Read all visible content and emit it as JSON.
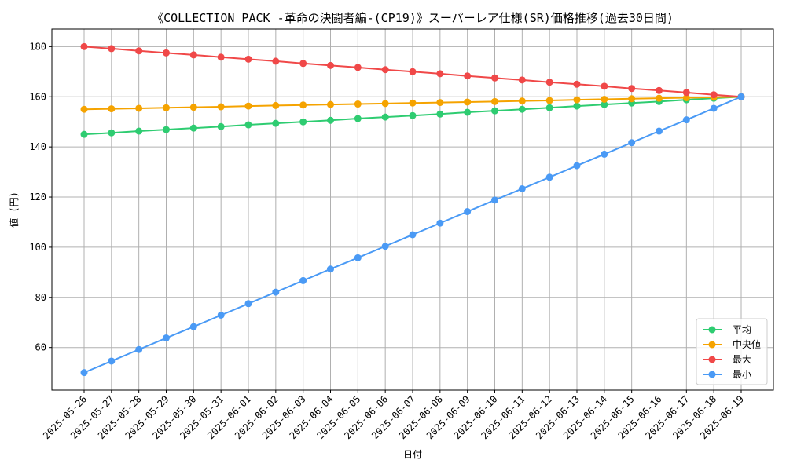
{
  "chart_data": {
    "type": "line",
    "title": "《COLLECTION PACK -革命の決闘者編-(CP19)》スーパーレア仕様(SR)価格推移(過去30日間)",
    "xlabel": "日付",
    "ylabel": "値 (円)",
    "ylim": [
      43,
      187
    ],
    "yticks": [
      60,
      80,
      100,
      120,
      140,
      160,
      180
    ],
    "grid": true,
    "legend_position": "bottom-right",
    "categories": [
      "2025-05-26",
      "2025-05-27",
      "2025-05-28",
      "2025-05-29",
      "2025-05-30",
      "2025-05-31",
      "2025-06-01",
      "2025-06-02",
      "2025-06-03",
      "2025-06-04",
      "2025-06-05",
      "2025-06-06",
      "2025-06-07",
      "2025-06-08",
      "2025-06-09",
      "2025-06-10",
      "2025-06-11",
      "2025-06-12",
      "2025-06-13",
      "2025-06-14",
      "2025-06-15",
      "2025-06-16",
      "2025-06-17",
      "2025-06-18",
      "2025-06-19"
    ],
    "series": [
      {
        "name": "平均",
        "color": "#2ecc71",
        "values": [
          145.0,
          145.6,
          146.3,
          146.9,
          147.5,
          148.1,
          148.8,
          149.4,
          150.0,
          150.6,
          151.3,
          151.9,
          152.5,
          153.1,
          153.8,
          154.4,
          155.0,
          155.6,
          156.3,
          156.9,
          157.5,
          158.1,
          158.8,
          159.4,
          160.0
        ]
      },
      {
        "name": "中央値",
        "color": "#f5a300",
        "values": [
          155.0,
          155.2,
          155.4,
          155.6,
          155.8,
          156.0,
          156.3,
          156.5,
          156.7,
          156.9,
          157.1,
          157.3,
          157.5,
          157.7,
          157.9,
          158.1,
          158.3,
          158.5,
          158.8,
          159.0,
          159.2,
          159.4,
          159.6,
          159.8,
          160.0
        ]
      },
      {
        "name": "最大",
        "color": "#f04848",
        "values": [
          180.0,
          179.2,
          178.3,
          177.5,
          176.7,
          175.8,
          175.0,
          174.2,
          173.3,
          172.5,
          171.7,
          170.8,
          170.0,
          169.2,
          168.3,
          167.5,
          166.7,
          165.8,
          165.0,
          164.2,
          163.3,
          162.5,
          161.7,
          160.8,
          160.0
        ]
      },
      {
        "name": "最小",
        "color": "#4a9af5",
        "values": [
          50.0,
          54.6,
          59.2,
          63.8,
          68.3,
          72.9,
          77.5,
          82.1,
          86.7,
          91.3,
          95.8,
          100.4,
          105.0,
          109.6,
          114.2,
          118.8,
          123.3,
          127.9,
          132.5,
          137.1,
          141.7,
          146.3,
          150.8,
          155.4,
          160.0
        ]
      }
    ]
  }
}
